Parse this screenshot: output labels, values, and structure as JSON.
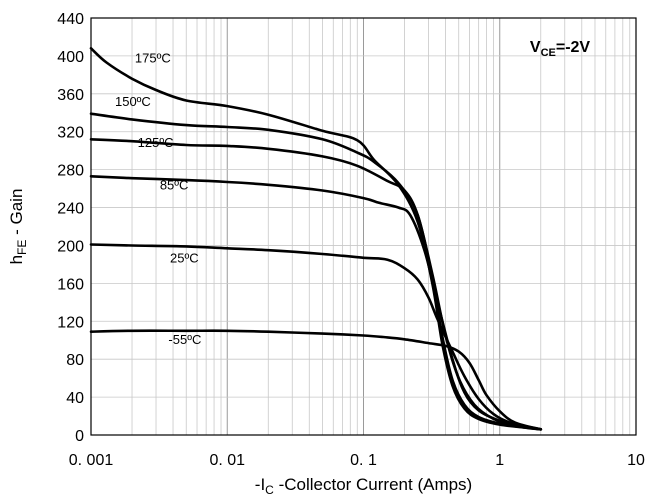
{
  "chart_data": {
    "type": "line",
    "x_scale": "log",
    "xlim": [
      0.001,
      10
    ],
    "ylim": [
      0,
      440
    ],
    "grid": true,
    "xlabel": {
      "prefix": "-I",
      "sub": "C",
      "suffix": " -Collector Current (Amps)"
    },
    "ylabel": {
      "prefix": "h",
      "sub": "FE",
      "suffix": " - Gain"
    },
    "condition": {
      "prefix": "V",
      "sub": "CE",
      "suffix": "=-2V"
    },
    "x_ticks": [
      {
        "value": 0.001,
        "label": "0. 001"
      },
      {
        "value": 0.01,
        "label": "0. 01"
      },
      {
        "value": 0.1,
        "label": "0. 1"
      },
      {
        "value": 1,
        "label": "1"
      },
      {
        "value": 10,
        "label": "10"
      }
    ],
    "y_ticks": [
      {
        "value": 0,
        "label": "0"
      },
      {
        "value": 40,
        "label": "40"
      },
      {
        "value": 80,
        "label": "80"
      },
      {
        "value": 120,
        "label": "120"
      },
      {
        "value": 160,
        "label": "160"
      },
      {
        "value": 200,
        "label": "200"
      },
      {
        "value": 240,
        "label": "240"
      },
      {
        "value": 280,
        "label": "280"
      },
      {
        "value": 320,
        "label": "320"
      },
      {
        "value": 360,
        "label": "360"
      },
      {
        "value": 400,
        "label": "400"
      },
      {
        "value": 440,
        "label": "440"
      }
    ],
    "series": [
      {
        "name": "175ºC",
        "label_at": [
          0.0021,
          393
        ],
        "points": [
          [
            0.001,
            408
          ],
          [
            0.0013,
            393
          ],
          [
            0.002,
            376
          ],
          [
            0.003,
            364
          ],
          [
            0.005,
            353
          ],
          [
            0.01,
            347
          ],
          [
            0.02,
            338
          ],
          [
            0.05,
            321
          ],
          [
            0.09,
            311
          ],
          [
            0.12,
            290
          ],
          [
            0.18,
            264
          ],
          [
            0.25,
            225
          ],
          [
            0.32,
            160
          ],
          [
            0.38,
            95
          ],
          [
            0.45,
            52
          ],
          [
            0.55,
            28
          ],
          [
            0.7,
            17
          ],
          [
            1.0,
            11
          ],
          [
            1.5,
            8
          ],
          [
            2.0,
            6
          ]
        ]
      },
      {
        "name": "150ºC",
        "label_at": [
          0.0015,
          347
        ],
        "points": [
          [
            0.001,
            339
          ],
          [
            0.002,
            333
          ],
          [
            0.005,
            327
          ],
          [
            0.01,
            325
          ],
          [
            0.02,
            322
          ],
          [
            0.05,
            312
          ],
          [
            0.09,
            298
          ],
          [
            0.12,
            288
          ],
          [
            0.18,
            266
          ],
          [
            0.25,
            232
          ],
          [
            0.32,
            165
          ],
          [
            0.38,
            103
          ],
          [
            0.45,
            58
          ],
          [
            0.55,
            32
          ],
          [
            0.7,
            19
          ],
          [
            1.0,
            12
          ],
          [
            1.5,
            8
          ],
          [
            2.0,
            6
          ]
        ]
      },
      {
        "name": "125ºC",
        "label_at": [
          0.0022,
          304
        ],
        "points": [
          [
            0.001,
            312
          ],
          [
            0.002,
            310
          ],
          [
            0.005,
            306
          ],
          [
            0.01,
            305
          ],
          [
            0.02,
            302
          ],
          [
            0.05,
            294
          ],
          [
            0.09,
            284
          ],
          [
            0.15,
            268
          ],
          [
            0.2,
            258
          ],
          [
            0.25,
            232
          ],
          [
            0.32,
            170
          ],
          [
            0.4,
            105
          ],
          [
            0.5,
            60
          ],
          [
            0.65,
            32
          ],
          [
            0.9,
            17
          ],
          [
            1.3,
            10
          ],
          [
            2.0,
            6
          ]
        ]
      },
      {
        "name": "85ºC",
        "label_at": [
          0.0032,
          259
        ],
        "points": [
          [
            0.001,
            273
          ],
          [
            0.002,
            271
          ],
          [
            0.005,
            269
          ],
          [
            0.01,
            267
          ],
          [
            0.02,
            264
          ],
          [
            0.05,
            258
          ],
          [
            0.1,
            250
          ],
          [
            0.13,
            245
          ],
          [
            0.18,
            240
          ],
          [
            0.22,
            232
          ],
          [
            0.28,
            195
          ],
          [
            0.35,
            140
          ],
          [
            0.45,
            80
          ],
          [
            0.55,
            45
          ],
          [
            0.7,
            26
          ],
          [
            1.0,
            15
          ],
          [
            1.5,
            9
          ],
          [
            2.0,
            6
          ]
        ]
      },
      {
        "name": "25ºC",
        "label_at": [
          0.0038,
          182
        ],
        "points": [
          [
            0.001,
            201
          ],
          [
            0.002,
            200
          ],
          [
            0.005,
            199
          ],
          [
            0.01,
            197
          ],
          [
            0.02,
            195
          ],
          [
            0.05,
            191
          ],
          [
            0.1,
            187
          ],
          [
            0.15,
            185
          ],
          [
            0.2,
            176
          ],
          [
            0.25,
            164
          ],
          [
            0.3,
            145
          ],
          [
            0.35,
            122
          ],
          [
            0.45,
            88
          ],
          [
            0.55,
            62
          ],
          [
            0.7,
            38
          ],
          [
            0.9,
            22
          ],
          [
            1.2,
            13
          ],
          [
            2.0,
            6
          ]
        ]
      },
      {
        "name": "-55ºC",
        "label_at": [
          0.0037,
          96
        ],
        "points": [
          [
            0.001,
            109
          ],
          [
            0.002,
            110
          ],
          [
            0.005,
            110
          ],
          [
            0.01,
            110
          ],
          [
            0.02,
            109
          ],
          [
            0.05,
            107
          ],
          [
            0.1,
            105
          ],
          [
            0.15,
            103
          ],
          [
            0.2,
            101
          ],
          [
            0.3,
            97
          ],
          [
            0.4,
            94
          ],
          [
            0.5,
            88
          ],
          [
            0.6,
            76
          ],
          [
            0.7,
            58
          ],
          [
            0.8,
            42
          ],
          [
            1.0,
            25
          ],
          [
            1.3,
            13
          ],
          [
            2.0,
            6
          ]
        ]
      }
    ]
  }
}
